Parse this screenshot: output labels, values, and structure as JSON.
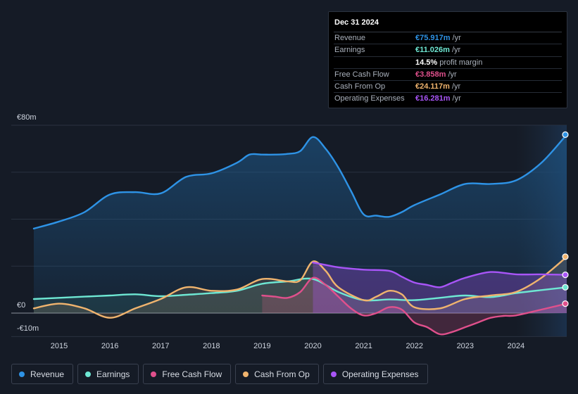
{
  "tooltip": {
    "date": "Dec 31 2024",
    "rows": [
      {
        "label": "Revenue",
        "value": "€75.917m",
        "unit": "/yr",
        "color": "#2e93e6"
      },
      {
        "label": "Earnings",
        "value": "€11.026m",
        "unit": "/yr",
        "color": "#6ee7d3"
      },
      {
        "label": "",
        "value": "14.5%",
        "unit": "profit margin",
        "color": "#ffffff"
      },
      {
        "label": "Free Cash Flow",
        "value": "€3.858m",
        "unit": "/yr",
        "color": "#e0508c"
      },
      {
        "label": "Cash From Op",
        "value": "€24.117m",
        "unit": "/yr",
        "color": "#f0b46e"
      },
      {
        "label": "Operating Expenses",
        "value": "€16.281m",
        "unit": "/yr",
        "color": "#a855f7"
      }
    ]
  },
  "legend": [
    {
      "label": "Revenue",
      "color": "#2e93e6"
    },
    {
      "label": "Earnings",
      "color": "#6ee7d3"
    },
    {
      "label": "Free Cash Flow",
      "color": "#e0508c"
    },
    {
      "label": "Cash From Op",
      "color": "#f0b46e"
    },
    {
      "label": "Operating Expenses",
      "color": "#a855f7"
    }
  ],
  "chart_data": {
    "type": "area",
    "title": "",
    "xlabel": "",
    "ylabel": "",
    "x_ticks": [
      "2015",
      "2016",
      "2017",
      "2018",
      "2019",
      "2020",
      "2021",
      "2022",
      "2023",
      "2024"
    ],
    "y_ticks": [
      "€80m",
      "€0",
      "-€10m"
    ],
    "ylim": [
      -10,
      80
    ],
    "xlim": [
      2014.5,
      2025.0
    ],
    "forecast_start": 2024.0,
    "series": [
      {
        "name": "Revenue",
        "color": "#2e93e6",
        "points": [
          [
            2014.5,
            36
          ],
          [
            2015,
            39
          ],
          [
            2015.5,
            43
          ],
          [
            2016,
            50.5
          ],
          [
            2016.5,
            51.5
          ],
          [
            2017,
            51
          ],
          [
            2017.5,
            58
          ],
          [
            2018,
            59.5
          ],
          [
            2018.5,
            64
          ],
          [
            2018.75,
            67.5
          ],
          [
            2019,
            67.5
          ],
          [
            2019.25,
            67.5
          ],
          [
            2019.5,
            67.8
          ],
          [
            2019.75,
            69
          ],
          [
            2020,
            75
          ],
          [
            2020.25,
            70
          ],
          [
            2020.5,
            62
          ],
          [
            2020.75,
            52
          ],
          [
            2021,
            42
          ],
          [
            2021.25,
            41.5
          ],
          [
            2021.5,
            41
          ],
          [
            2021.75,
            43
          ],
          [
            2022,
            46
          ],
          [
            2022.5,
            50.5
          ],
          [
            2023,
            55
          ],
          [
            2023.5,
            55
          ],
          [
            2024,
            56.5
          ],
          [
            2024.5,
            64
          ],
          [
            2025,
            76
          ]
        ]
      },
      {
        "name": "Earnings",
        "color": "#6ee7d3",
        "points": [
          [
            2014.5,
            6
          ],
          [
            2015,
            6.5
          ],
          [
            2015.5,
            7
          ],
          [
            2016,
            7.5
          ],
          [
            2016.5,
            8
          ],
          [
            2017,
            7.2
          ],
          [
            2017.5,
            7.8
          ],
          [
            2018,
            8.5
          ],
          [
            2018.5,
            9.5
          ],
          [
            2019,
            12.5
          ],
          [
            2019.5,
            13.5
          ],
          [
            2020,
            14.5
          ],
          [
            2020.5,
            9
          ],
          [
            2021,
            5.5
          ],
          [
            2021.5,
            5.8
          ],
          [
            2022,
            5.5
          ],
          [
            2022.5,
            6.5
          ],
          [
            2023,
            7.5
          ],
          [
            2023.5,
            6.8
          ],
          [
            2024,
            8.5
          ],
          [
            2024.5,
            9.8
          ],
          [
            2025,
            11
          ]
        ]
      },
      {
        "name": "Free Cash Flow",
        "color": "#e0508c",
        "points": [
          [
            2019,
            7.5
          ],
          [
            2019.25,
            7
          ],
          [
            2019.5,
            6.5
          ],
          [
            2019.75,
            9
          ],
          [
            2020,
            15
          ],
          [
            2020.25,
            12
          ],
          [
            2020.5,
            7
          ],
          [
            2020.75,
            2
          ],
          [
            2021,
            -1
          ],
          [
            2021.25,
            0
          ],
          [
            2021.5,
            2.5
          ],
          [
            2021.75,
            1.5
          ],
          [
            2022,
            -4
          ],
          [
            2022.25,
            -6
          ],
          [
            2022.5,
            -9
          ],
          [
            2022.75,
            -8
          ],
          [
            2023,
            -6
          ],
          [
            2023.25,
            -4
          ],
          [
            2023.5,
            -2
          ],
          [
            2023.75,
            -1.2
          ],
          [
            2024,
            -1
          ],
          [
            2024.5,
            1.5
          ],
          [
            2025,
            4
          ]
        ]
      },
      {
        "name": "Cash From Op",
        "color": "#f0b46e",
        "points": [
          [
            2014.5,
            2
          ],
          [
            2015,
            4
          ],
          [
            2015.5,
            2
          ],
          [
            2016,
            -2
          ],
          [
            2016.5,
            2
          ],
          [
            2017,
            6
          ],
          [
            2017.5,
            11
          ],
          [
            2018,
            9.5
          ],
          [
            2018.5,
            10
          ],
          [
            2019,
            14.5
          ],
          [
            2019.5,
            13.5
          ],
          [
            2019.75,
            14
          ],
          [
            2020,
            22
          ],
          [
            2020.25,
            18
          ],
          [
            2020.5,
            11
          ],
          [
            2021,
            5.5
          ],
          [
            2021.25,
            7
          ],
          [
            2021.5,
            9.5
          ],
          [
            2021.75,
            8
          ],
          [
            2022,
            2.5
          ],
          [
            2022.5,
            2
          ],
          [
            2023,
            6
          ],
          [
            2023.5,
            7.5
          ],
          [
            2024,
            9
          ],
          [
            2024.5,
            15
          ],
          [
            2025,
            24
          ]
        ]
      },
      {
        "name": "Operating Expenses",
        "color": "#a855f7",
        "points": [
          [
            2020,
            21.5
          ],
          [
            2020.25,
            20.5
          ],
          [
            2020.5,
            19.5
          ],
          [
            2021,
            18.5
          ],
          [
            2021.5,
            18
          ],
          [
            2021.75,
            15.5
          ],
          [
            2022,
            13
          ],
          [
            2022.25,
            12
          ],
          [
            2022.5,
            11
          ],
          [
            2022.75,
            13
          ],
          [
            2023,
            15
          ],
          [
            2023.5,
            17.5
          ],
          [
            2024,
            16.5
          ],
          [
            2024.5,
            16.5
          ],
          [
            2025,
            16.3
          ]
        ]
      }
    ]
  }
}
